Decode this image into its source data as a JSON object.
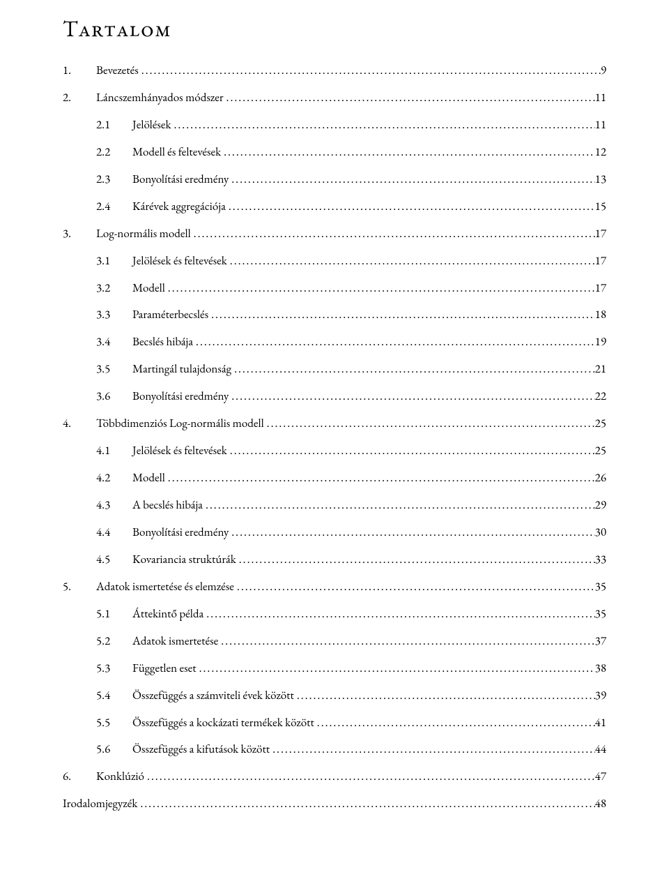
{
  "title": "Tartalom",
  "title_fontsize": 32,
  "body_fontsize": 17,
  "font_family": "Garamond",
  "text_color": "#000000",
  "background_color": "#ffffff",
  "leader_char": ".",
  "entries": [
    {
      "level": 1,
      "num": "1.",
      "text": "Bevezetés",
      "page": "9"
    },
    {
      "level": 1,
      "num": "2.",
      "text": "Láncszemhányados módszer",
      "page": "11"
    },
    {
      "level": 2,
      "num": "2.1",
      "text": "Jelölések",
      "page": "11"
    },
    {
      "level": 2,
      "num": "2.2",
      "text": "Modell és feltevések",
      "page": "12"
    },
    {
      "level": 2,
      "num": "2.3",
      "text": "Bonyolítási eredmény",
      "page": "13"
    },
    {
      "level": 2,
      "num": "2.4",
      "text": "Kárévek aggregációja",
      "page": "15"
    },
    {
      "level": 1,
      "num": "3.",
      "text": "Log-normális modell",
      "page": "17"
    },
    {
      "level": 2,
      "num": "3.1",
      "text": "Jelölések és feltevések",
      "page": "17"
    },
    {
      "level": 2,
      "num": "3.2",
      "text": "Modell",
      "page": "17"
    },
    {
      "level": 2,
      "num": "3.3",
      "text": "Paraméterbecslés",
      "page": "18"
    },
    {
      "level": 2,
      "num": "3.4",
      "text": "Becslés hibája",
      "page": "19"
    },
    {
      "level": 2,
      "num": "3.5",
      "text": "Martingál tulajdonság",
      "page": "21"
    },
    {
      "level": 2,
      "num": "3.6",
      "text": "Bonyolítási eredmény",
      "page": "22"
    },
    {
      "level": 1,
      "num": "4.",
      "text": "Többdimenziós Log-normális modell",
      "page": "25"
    },
    {
      "level": 2,
      "num": "4.1",
      "text": "Jelölések és feltevések",
      "page": "25"
    },
    {
      "level": 2,
      "num": "4.2",
      "text": "Modell",
      "page": "26"
    },
    {
      "level": 2,
      "num": "4.3",
      "text": "A becslés hibája",
      "page": "29"
    },
    {
      "level": 2,
      "num": "4.4",
      "text": "Bonyolítási eredmény",
      "page": "30"
    },
    {
      "level": 2,
      "num": "4.5",
      "text": "Kovariancia struktúrák",
      "page": "33"
    },
    {
      "level": 1,
      "num": "5.",
      "text": "Adatok ismertetése és elemzése",
      "page": "35"
    },
    {
      "level": 2,
      "num": "5.1",
      "text": "Áttekintő példa",
      "page": "35"
    },
    {
      "level": 2,
      "num": "5.2",
      "text": "Adatok ismertetése",
      "page": "37"
    },
    {
      "level": 2,
      "num": "5.3",
      "text": "Független eset",
      "page": "38"
    },
    {
      "level": 2,
      "num": "5.4",
      "text": "Összefüggés a számviteli évek között",
      "page": "39"
    },
    {
      "level": 2,
      "num": "5.5",
      "text": "Összefüggés a kockázati termékek között",
      "page": "41"
    },
    {
      "level": 2,
      "num": "5.6",
      "text": "Összefüggés a kifutások között",
      "page": "44"
    },
    {
      "level": 1,
      "num": "6.",
      "text": "Konklúzió",
      "page": "47"
    },
    {
      "level": 0,
      "num": "",
      "text": "Irodalomjegyzék",
      "page": "48"
    }
  ]
}
